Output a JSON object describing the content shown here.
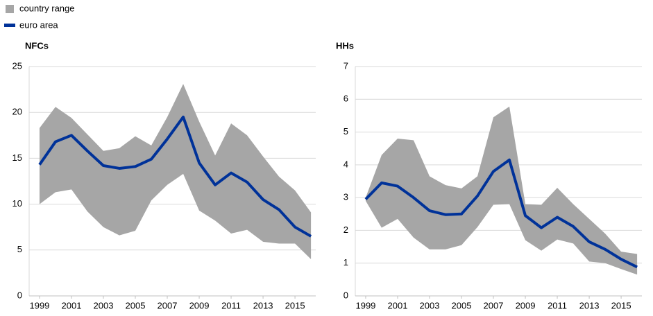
{
  "chart_data": [
    {
      "type": "range-line",
      "title": "NFCs",
      "x": [
        1999,
        2000,
        2001,
        2002,
        2003,
        2004,
        2005,
        2006,
        2007,
        2008,
        2009,
        2010,
        2011,
        2012,
        2013,
        2014,
        2015,
        2016
      ],
      "xlim": [
        1998.35,
        2016.3
      ],
      "xticks": [
        1999,
        2001,
        2003,
        2005,
        2007,
        2009,
        2011,
        2013,
        2015
      ],
      "ylim": [
        0,
        25
      ],
      "yticks": [
        0,
        5,
        10,
        15,
        20,
        25
      ],
      "grid": true,
      "series": [
        {
          "name": "country range",
          "color": "#a6a6a6",
          "low": [
            10.0,
            11.3,
            11.6,
            9.2,
            7.5,
            6.6,
            7.1,
            10.4,
            12.1,
            13.3,
            9.3,
            8.2,
            6.8,
            7.2,
            5.9,
            5.7,
            5.7,
            4.0
          ],
          "high": [
            18.3,
            20.6,
            19.4,
            17.6,
            15.8,
            16.1,
            17.4,
            16.4,
            19.5,
            23.1,
            19.0,
            15.3,
            18.8,
            17.5,
            15.2,
            13.0,
            11.5,
            9.1
          ]
        },
        {
          "name": "euro area",
          "color": "#003299",
          "values": [
            14.3,
            16.8,
            17.5,
            15.8,
            14.2,
            13.9,
            14.1,
            14.9,
            17.1,
            19.5,
            14.5,
            12.1,
            13.4,
            12.4,
            10.5,
            9.4,
            7.5,
            6.5
          ]
        }
      ]
    },
    {
      "type": "range-line",
      "title": "HHs",
      "x": [
        1999,
        2000,
        2001,
        2002,
        2003,
        2004,
        2005,
        2006,
        2007,
        2008,
        2009,
        2010,
        2011,
        2012,
        2013,
        2014,
        2015,
        2016
      ],
      "xlim": [
        1998.35,
        2016.3
      ],
      "xticks": [
        1999,
        2001,
        2003,
        2005,
        2007,
        2009,
        2011,
        2013,
        2015
      ],
      "ylim": [
        0,
        7
      ],
      "yticks": [
        0,
        1,
        2,
        3,
        4,
        5,
        6,
        7
      ],
      "grid": true,
      "series": [
        {
          "color": "#a6a6a6",
          "low": [
            2.9,
            2.08,
            2.35,
            1.78,
            1.42,
            1.42,
            1.55,
            2.1,
            2.78,
            2.8,
            1.7,
            1.38,
            1.72,
            1.6,
            1.05,
            1.0,
            0.82,
            0.65
          ],
          "high": [
            3.0,
            4.3,
            4.8,
            4.75,
            3.65,
            3.38,
            3.28,
            3.65,
            5.45,
            5.78,
            2.8,
            2.78,
            3.3,
            2.8,
            2.35,
            1.9,
            1.35,
            1.28
          ]
        },
        {
          "color": "#003299",
          "values": [
            2.95,
            3.45,
            3.35,
            3.0,
            2.6,
            2.48,
            2.5,
            3.05,
            3.8,
            4.15,
            2.45,
            2.08,
            2.4,
            2.12,
            1.65,
            1.42,
            1.12,
            0.88
          ]
        }
      ]
    }
  ]
}
